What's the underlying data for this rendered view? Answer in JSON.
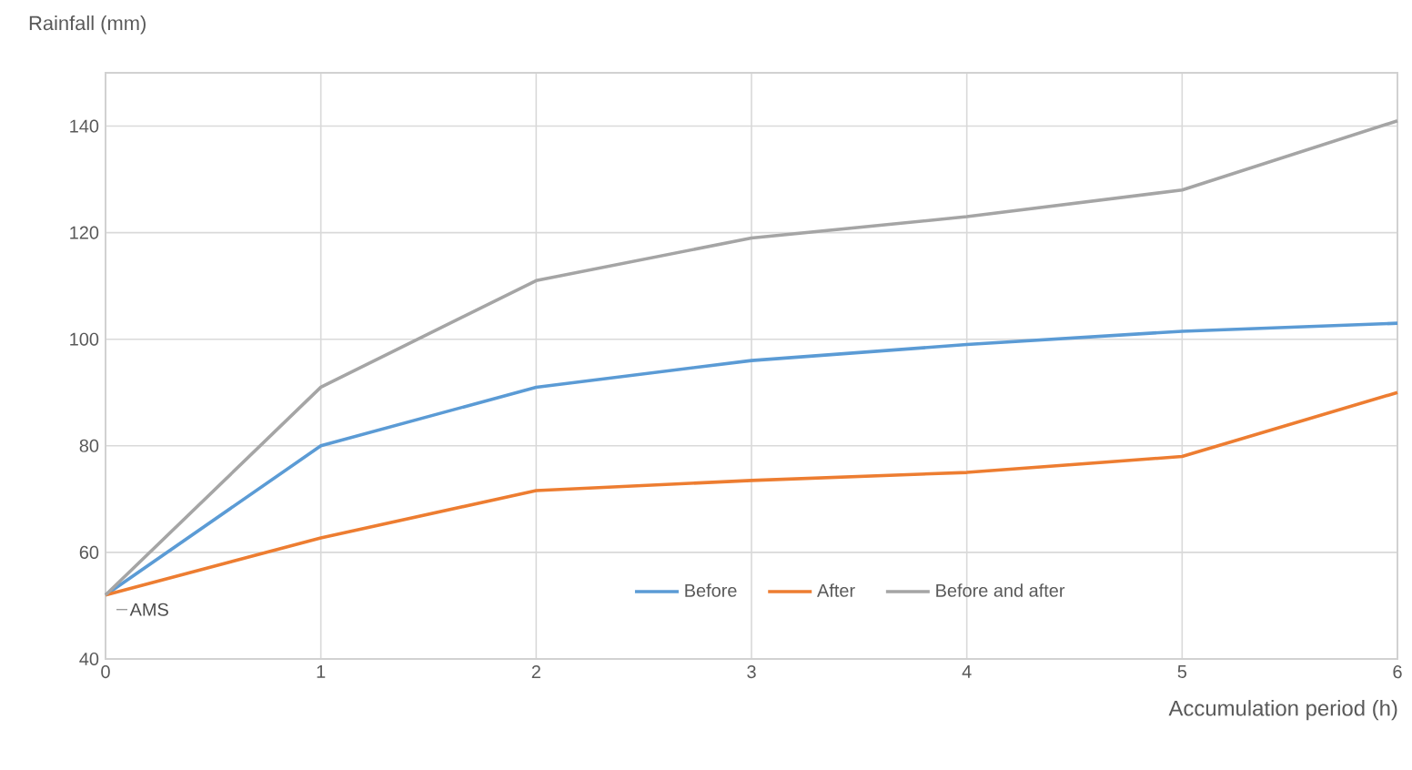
{
  "chart_data": {
    "type": "line",
    "xlabel": "Accumulation period (h)",
    "ylabel": "Rainfall (mm)",
    "x": [
      0,
      1,
      2,
      3,
      4,
      5,
      6
    ],
    "series": [
      {
        "name": "Before",
        "color": "#5b9bd5",
        "values": [
          52,
          80,
          91,
          96,
          99,
          101.5,
          103
        ]
      },
      {
        "name": "After",
        "color": "#ed7d31",
        "values": [
          52,
          62.7,
          71.6,
          73.5,
          75,
          78,
          90
        ]
      },
      {
        "name": "Before and after",
        "color": "#a5a5a5",
        "values": [
          52,
          91,
          111,
          119,
          123,
          128,
          141
        ]
      }
    ],
    "xlim": [
      0,
      6
    ],
    "xticks": [
      0,
      1,
      2,
      3,
      4,
      5,
      6
    ],
    "ylim": [
      40,
      150
    ],
    "yticks": [
      40,
      60,
      80,
      100,
      120,
      140,
      {
        "value": 150,
        "label": null
      }
    ],
    "annotations": [
      {
        "text": "AMS",
        "x": 0,
        "y": 52
      }
    ],
    "grid": true,
    "legend": "bottom",
    "marker": "none",
    "line_style": "solid"
  }
}
